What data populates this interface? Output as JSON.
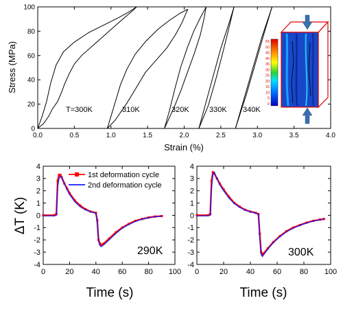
{
  "colors": {
    "axis": "#000000",
    "series_first": "#ff0000",
    "series_second": "#1a1aff",
    "curve_top": "#000000",
    "inset_phase": "#1040c8",
    "inset_box": "#e00000",
    "arrow": "#3a6fb0"
  },
  "chart_data": [
    {
      "type": "line",
      "xlabel": "Strain (%)",
      "ylabel": "Stress (MPa)",
      "xlim": [
        0.0,
        4.0
      ],
      "ylim": [
        0,
        100
      ],
      "xticks": [
        "0.0",
        "0.5",
        "1.0",
        "1.5",
        "2.0",
        "2.5",
        "3.0",
        "3.5",
        "4.0"
      ],
      "yticks": [
        "0",
        "20",
        "40",
        "60",
        "80",
        "100"
      ],
      "annotations": [
        "T=300K",
        "310K",
        "320K",
        "330K",
        "340K"
      ],
      "inset": {
        "description_icon": "microstructure-colormap-icon",
        "colorbar_ticks": [
          "55",
          "50",
          "45",
          "40",
          "35",
          "30",
          "25",
          "20",
          "15",
          "10",
          "5",
          "0"
        ]
      },
      "series": [
        {
          "temperature": "300K",
          "loading": [
            [
              0.0,
              0
            ],
            [
              0.06,
              10
            ],
            [
              0.12,
              22
            ],
            [
              0.18,
              38
            ],
            [
              0.25,
              52
            ],
            [
              0.35,
              63
            ],
            [
              0.5,
              71
            ],
            [
              0.7,
              79
            ],
            [
              0.9,
              85
            ],
            [
              1.1,
              91
            ],
            [
              1.25,
              96
            ],
            [
              1.35,
              100
            ]
          ],
          "unloading": [
            [
              1.35,
              100
            ],
            [
              1.3,
              97
            ],
            [
              1.2,
              92
            ],
            [
              1.05,
              84
            ],
            [
              0.9,
              76
            ],
            [
              0.75,
              68
            ],
            [
              0.6,
              60
            ],
            [
              0.5,
              53
            ],
            [
              0.43,
              45
            ],
            [
              0.37,
              37
            ],
            [
              0.32,
              29
            ],
            [
              0.27,
              22
            ],
            [
              0.2,
              16
            ],
            [
              0.15,
              10
            ],
            [
              0.08,
              4
            ],
            [
              0.0,
              0
            ]
          ]
        },
        {
          "temperature": "310K",
          "loading": [
            [
              0.95,
              0
            ],
            [
              1.0,
              10
            ],
            [
              1.06,
              22
            ],
            [
              1.13,
              36
            ],
            [
              1.22,
              49
            ],
            [
              1.33,
              61
            ],
            [
              1.48,
              72
            ],
            [
              1.65,
              82
            ],
            [
              1.8,
              89
            ],
            [
              1.95,
              95
            ],
            [
              2.05,
              98
            ]
          ],
          "unloading": [
            [
              2.05,
              98
            ],
            [
              2.02,
              94
            ],
            [
              1.97,
              87
            ],
            [
              1.88,
              77
            ],
            [
              1.76,
              66
            ],
            [
              1.6,
              55
            ],
            [
              1.47,
              46
            ],
            [
              1.38,
              37
            ],
            [
              1.3,
              29
            ],
            [
              1.22,
              21
            ],
            [
              1.14,
              14
            ],
            [
              1.06,
              7
            ],
            [
              0.95,
              0
            ]
          ]
        },
        {
          "temperature": "320K",
          "loading": [
            [
              1.73,
              0
            ],
            [
              1.8,
              15
            ],
            [
              1.87,
              32
            ],
            [
              1.95,
              50
            ],
            [
              2.04,
              66
            ],
            [
              2.13,
              80
            ],
            [
              2.22,
              91
            ],
            [
              2.3,
              100
            ]
          ],
          "unloading": [
            [
              2.3,
              100
            ],
            [
              2.27,
              90
            ],
            [
              2.22,
              77
            ],
            [
              2.14,
              62
            ],
            [
              2.05,
              47
            ],
            [
              1.96,
              32
            ],
            [
              1.86,
              17
            ],
            [
              1.73,
              0
            ]
          ]
        },
        {
          "temperature": "330K",
          "loading": [
            [
              2.2,
              0
            ],
            [
              2.3,
              22
            ],
            [
              2.4,
              44
            ],
            [
              2.5,
              66
            ],
            [
              2.62,
              88
            ],
            [
              2.68,
              100
            ]
          ],
          "unloading": [
            [
              2.68,
              100
            ],
            [
              2.62,
              85
            ],
            [
              2.53,
              63
            ],
            [
              2.43,
              40
            ],
            [
              2.33,
              19
            ],
            [
              2.2,
              0
            ]
          ]
        },
        {
          "temperature": "340K",
          "loading": [
            [
              2.7,
              0
            ],
            [
              2.82,
              25
            ],
            [
              2.94,
              50
            ],
            [
              3.06,
              75
            ],
            [
              3.2,
              100
            ]
          ],
          "unloading": [
            [
              3.2,
              100
            ],
            [
              3.1,
              80
            ],
            [
              2.98,
              55
            ],
            [
              2.85,
              28
            ],
            [
              2.7,
              0
            ]
          ]
        }
      ]
    },
    {
      "type": "line",
      "xlabel": "Time (s)",
      "ylabel": "ΔT (K)",
      "xlim": [
        0,
        100
      ],
      "ylim": [
        -4,
        4
      ],
      "xticks": [
        "0",
        "20",
        "40",
        "60",
        "80",
        "100"
      ],
      "yticks": [
        "-4",
        "-3",
        "-2",
        "-1",
        "0",
        "1",
        "2",
        "3",
        "4"
      ],
      "annotation": "290K",
      "legend": {
        "placement": "top-right",
        "entries": [
          "1st deformation cycle",
          "2nd deformation cycle"
        ]
      },
      "series": [
        {
          "name": "1st deformation cycle",
          "x": [
            0,
            8,
            10,
            11,
            12,
            13,
            14,
            16,
            18,
            20,
            24,
            28,
            32,
            36,
            40,
            41,
            42,
            43,
            44,
            46,
            50,
            55,
            60,
            65,
            70,
            75,
            80,
            85,
            90
          ],
          "y": [
            0,
            0,
            0.1,
            2.8,
            3.3,
            3.3,
            3.1,
            2.6,
            2.2,
            1.8,
            1.2,
            0.8,
            0.5,
            0.3,
            0.2,
            -0.4,
            -2.0,
            -2.3,
            -2.4,
            -2.3,
            -1.9,
            -1.4,
            -1.0,
            -0.7,
            -0.45,
            -0.3,
            -0.18,
            -0.1,
            -0.06
          ]
        },
        {
          "name": "2nd deformation cycle",
          "x": [
            0,
            8,
            10,
            11,
            12,
            13,
            14,
            16,
            18,
            20,
            24,
            28,
            32,
            36,
            40,
            41,
            42,
            43,
            44,
            46,
            50,
            55,
            60,
            65,
            70,
            75,
            80,
            85,
            90
          ],
          "y": [
            -0.05,
            -0.05,
            0.0,
            2.3,
            3.0,
            3.2,
            3.1,
            2.6,
            2.1,
            1.7,
            1.1,
            0.7,
            0.45,
            0.28,
            0.18,
            -0.5,
            -2.1,
            -2.45,
            -2.55,
            -2.4,
            -2.0,
            -1.5,
            -1.05,
            -0.75,
            -0.5,
            -0.32,
            -0.2,
            -0.12,
            -0.07
          ]
        }
      ]
    },
    {
      "type": "line",
      "xlabel": "Time (s)",
      "ylabel": "",
      "xlim": [
        0,
        100
      ],
      "ylim": [
        -4,
        4
      ],
      "xticks": [
        "0",
        "20",
        "40",
        "60",
        "80",
        "100"
      ],
      "yticks": [
        "-4",
        "-3",
        "-2",
        "-1",
        "0",
        "1",
        "2",
        "3",
        "4"
      ],
      "annotation": "300K",
      "series": [
        {
          "name": "1st deformation cycle",
          "x": [
            0,
            8,
            10,
            11,
            12,
            13,
            15,
            17,
            20,
            24,
            28,
            32,
            36,
            40,
            44,
            46,
            47,
            48,
            49,
            50,
            53,
            57,
            62,
            67,
            72,
            77,
            82,
            87,
            92,
            95
          ],
          "y": [
            0,
            0,
            0.1,
            2.8,
            3.5,
            3.4,
            3.0,
            2.6,
            2.1,
            1.5,
            1.0,
            0.7,
            0.45,
            0.3,
            0.2,
            0.1,
            -1.5,
            -3.0,
            -3.2,
            -3.1,
            -2.7,
            -2.2,
            -1.7,
            -1.3,
            -1.0,
            -0.8,
            -0.6,
            -0.45,
            -0.35,
            -0.3
          ]
        },
        {
          "name": "2nd deformation cycle",
          "x": [
            0,
            8,
            10,
            11,
            12,
            13,
            15,
            17,
            20,
            24,
            28,
            32,
            36,
            40,
            44,
            46,
            47,
            48,
            49,
            50,
            53,
            57,
            62,
            67,
            72,
            77,
            82,
            87,
            92,
            95
          ],
          "y": [
            -0.05,
            -0.05,
            0.0,
            2.2,
            3.3,
            3.5,
            3.0,
            2.5,
            2.0,
            1.4,
            0.95,
            0.65,
            0.42,
            0.28,
            0.18,
            0.08,
            -1.8,
            -3.2,
            -3.35,
            -3.2,
            -2.75,
            -2.25,
            -1.75,
            -1.35,
            -1.05,
            -0.82,
            -0.62,
            -0.47,
            -0.36,
            -0.31
          ]
        }
      ]
    }
  ]
}
